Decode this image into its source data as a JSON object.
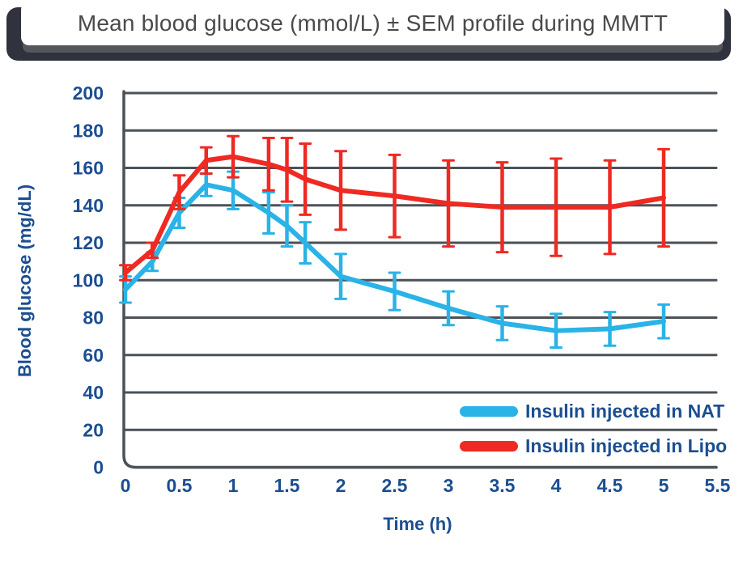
{
  "title": "Mean blood glucose (mmol/L) ± SEM profile during MMTT",
  "colors": {
    "nat_series": "#2ab3e7",
    "lipo_series": "#ee2a23",
    "axis_text": "#1c4e91",
    "gridline": "#4c5156",
    "title_text": "#4a4a4a",
    "title_card_shadow": "#30333e"
  },
  "chart_data": {
    "type": "line",
    "title": "Mean blood glucose (mmol/L) ± SEM profile during MMTT",
    "xlabel": "Time (h)",
    "ylabel": "Blood glucose (mg/dL)",
    "xlim": [
      0,
      5.5
    ],
    "ylim": [
      0,
      200
    ],
    "ytick_step": 20,
    "xticks": [
      0,
      0.5,
      1,
      1.5,
      2,
      2.5,
      3,
      3.5,
      4,
      4.5,
      5,
      5.5
    ],
    "xtick_labels": [
      "0",
      "0.5",
      "1",
      "1.5",
      "2",
      "2.5",
      "3",
      "3.5",
      "4",
      "4.5",
      "5",
      "5.5"
    ],
    "grid": "horizontal",
    "legend_position": "inside-bottom-right",
    "error_bars": "SEM",
    "x": [
      0,
      0.25,
      0.5,
      0.75,
      1,
      1.33,
      1.5,
      1.67,
      2,
      2.5,
      3,
      3.5,
      4,
      4.5,
      5
    ],
    "series": [
      {
        "name": "Insulin injected in NAT",
        "color": "#2ab3e7",
        "values": [
          95,
          110,
          136,
          151,
          148,
          136,
          129,
          120,
          102,
          94,
          85,
          77,
          73,
          74,
          78
        ],
        "sem": [
          7,
          5,
          8,
          6,
          10,
          11,
          11,
          11,
          12,
          10,
          9,
          9,
          9,
          9,
          9
        ]
      },
      {
        "name": "Insulin injected in Lipo",
        "color": "#ee2a23",
        "values": [
          104,
          116,
          147,
          164,
          166,
          162,
          159,
          154,
          148,
          145,
          141,
          139,
          139,
          139,
          144
        ],
        "sem": [
          4,
          4,
          9,
          7,
          11,
          14,
          17,
          19,
          21,
          22,
          23,
          24,
          26,
          25,
          26
        ]
      }
    ]
  }
}
